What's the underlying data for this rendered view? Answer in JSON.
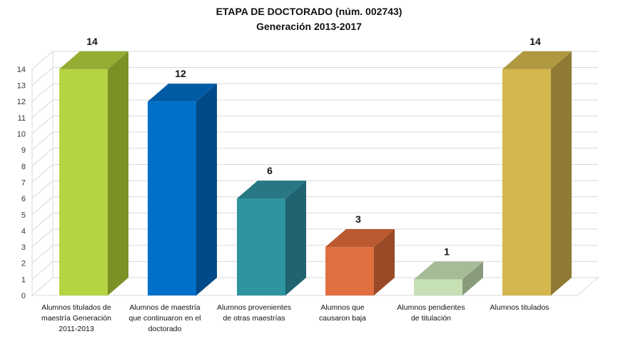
{
  "chart_data": {
    "type": "bar",
    "title": "ETAPA DE DOCTORADO (núm. 002743)",
    "subtitle": "Generación 2013-2017",
    "categories": [
      [
        "Alumnos titulados  de",
        "maestría Generación",
        "2011-2013"
      ],
      [
        "Alumnos de maestría",
        "que continuaron en el",
        "doctorado"
      ],
      [
        "Alumnos provenientes",
        "de otras maestrías"
      ],
      [
        "Alumnos que",
        "causaron baja"
      ],
      [
        "Alumnos pendientes",
        "de titulación"
      ],
      [
        "Alumnos titulados"
      ]
    ],
    "values": [
      14,
      12,
      6,
      3,
      1,
      14
    ],
    "ylim": [
      0,
      14
    ],
    "yticks": [
      "0",
      "1",
      "2",
      "3",
      "4",
      "5",
      "6",
      "7",
      "8",
      "9",
      "10",
      "11",
      "12",
      "13",
      "14"
    ],
    "grid": true,
    "colors": [
      {
        "front": "#b5d443",
        "side": "#7b9126",
        "top": "#94ad32"
      },
      {
        "front": "#0070c8",
        "side": "#004a87",
        "top": "#005ba5"
      },
      {
        "front": "#2f93a0",
        "side": "#1f6470",
        "top": "#277884"
      },
      {
        "front": "#e07040",
        "side": "#9a4a27",
        "top": "#bb5a30"
      },
      {
        "front": "#c6e0b6",
        "side": "#889c7d",
        "top": "#a6bc98"
      },
      {
        "front": "#d3b64e",
        "side": "#8e7a33",
        "top": "#b09840"
      }
    ]
  }
}
